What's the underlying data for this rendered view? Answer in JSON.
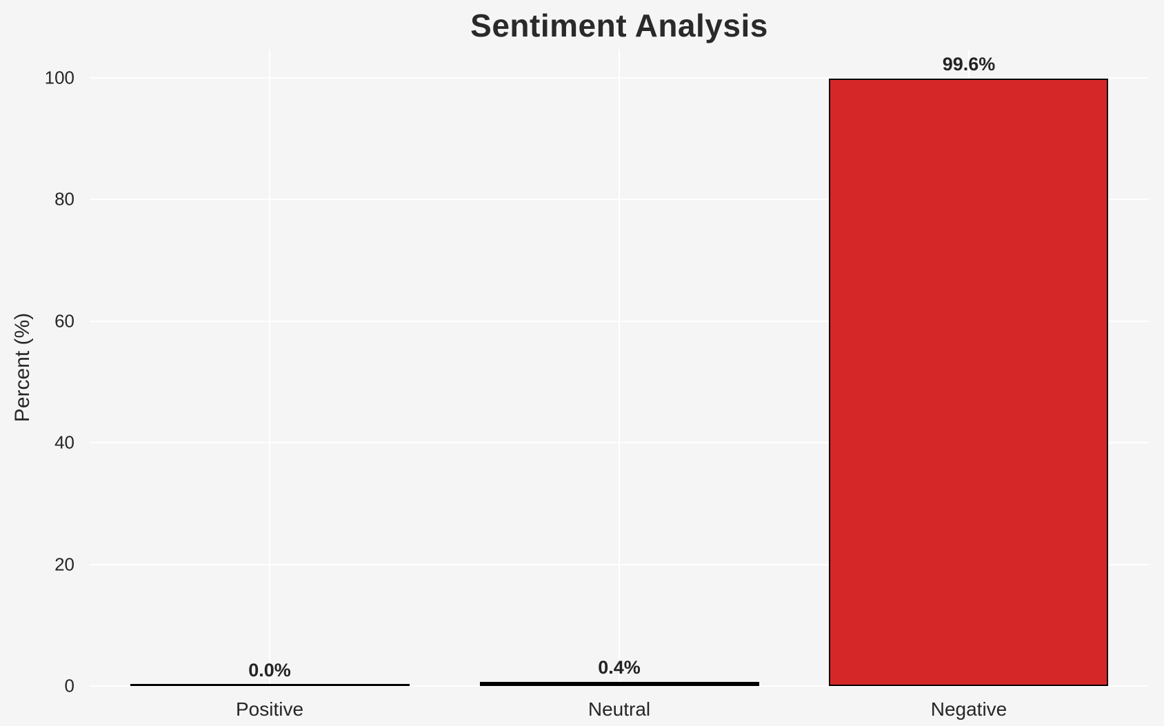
{
  "title": "Sentiment Analysis",
  "colors": {
    "background": "#f5f5f6",
    "gridline": "#ffffff",
    "text": "#262626",
    "bar_edge": "#000000",
    "negative_fill": "#d62728"
  },
  "chart_data": {
    "type": "bar",
    "title": "Sentiment Analysis",
    "xlabel": "",
    "ylabel": "Percent (%)",
    "categories": [
      "Positive",
      "Neutral",
      "Negative"
    ],
    "values": [
      0.0,
      0.4,
      99.6
    ],
    "value_labels": [
      "0.0%",
      "0.4%",
      "99.6%"
    ],
    "bar_fills": [
      null,
      null,
      "#d62728"
    ],
    "bar_edge_color": "#000000",
    "yticks": [
      0,
      20,
      40,
      60,
      80,
      100
    ],
    "ytick_labels": [
      "0",
      "20",
      "40",
      "60",
      "80",
      "100"
    ],
    "ylim": [
      0,
      104.6
    ],
    "grid": true,
    "grid_color": "#ffffff",
    "legend": "none"
  }
}
